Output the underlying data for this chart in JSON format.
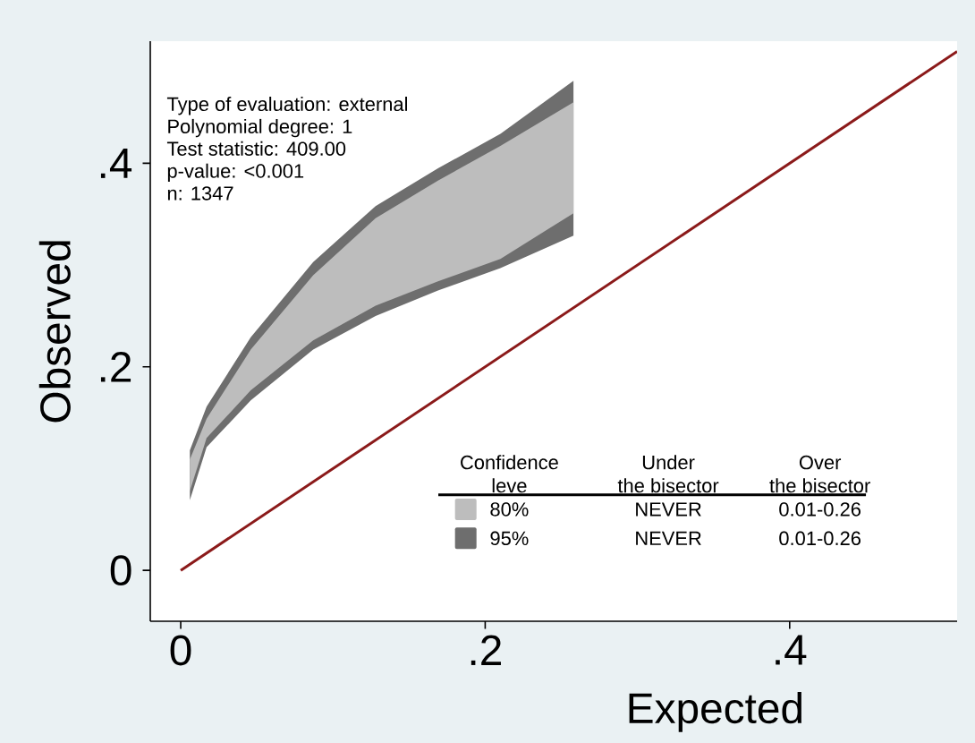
{
  "chart_data": {
    "type": "area",
    "xlabel": "Expected",
    "ylabel": "Observed",
    "xlim": [
      -0.02,
      0.51
    ],
    "ylim": [
      -0.05,
      0.52
    ],
    "xticks": [
      0,
      {
        "value": 0.2,
        "label": ".2"
      },
      {
        "value": 0.4,
        "label": ".4"
      }
    ],
    "yticks": [
      0,
      {
        "value": 0.2,
        "label": ".2"
      },
      {
        "value": 0.4,
        "label": ".4"
      }
    ],
    "grid": false,
    "legend": "bottom",
    "series": [
      {
        "name": "95%",
        "color": "#6e6e6e",
        "x": [
          0.006,
          0.017,
          0.046,
          0.087,
          0.128,
          0.169,
          0.21,
          0.258
        ],
        "lower": [
          0.069,
          0.121,
          0.167,
          0.217,
          0.25,
          0.275,
          0.297,
          0.329
        ],
        "values": [
          null,
          null,
          null,
          null,
          null,
          null,
          null,
          null
        ],
        "upper": [
          0.118,
          0.161,
          0.229,
          0.303,
          0.358,
          0.395,
          0.429,
          0.481
        ]
      },
      {
        "name": "80%",
        "color": "#bdbdbd",
        "x": [
          0.006,
          0.017,
          0.046,
          0.087,
          0.128,
          0.169,
          0.21,
          0.258
        ],
        "lower": [
          0.078,
          0.13,
          0.177,
          0.226,
          0.26,
          0.284,
          0.306,
          0.351
        ],
        "values": [
          null,
          null,
          null,
          null,
          null,
          null,
          null,
          null
        ],
        "upper": [
          0.109,
          0.149,
          0.217,
          0.29,
          0.346,
          0.383,
          0.417,
          0.46
        ]
      },
      {
        "type": "line",
        "color": "#8b1a1a",
        "x": [
          0,
          0.51
        ],
        "values": [
          0,
          0.51
        ]
      }
    ],
    "annotations": [
      "Type of evaluation: external",
      "Polynomial degree: 1",
      "Test statistic: 409.00",
      "p-value: <0.001",
      "n: 1347",
      "Confidence",
      "leve",
      "Under",
      "the bisector",
      "Over",
      "the bisector",
      "NEVER",
      "0.01-0.26",
      "NEVER",
      "0.01-0.26"
    ]
  }
}
